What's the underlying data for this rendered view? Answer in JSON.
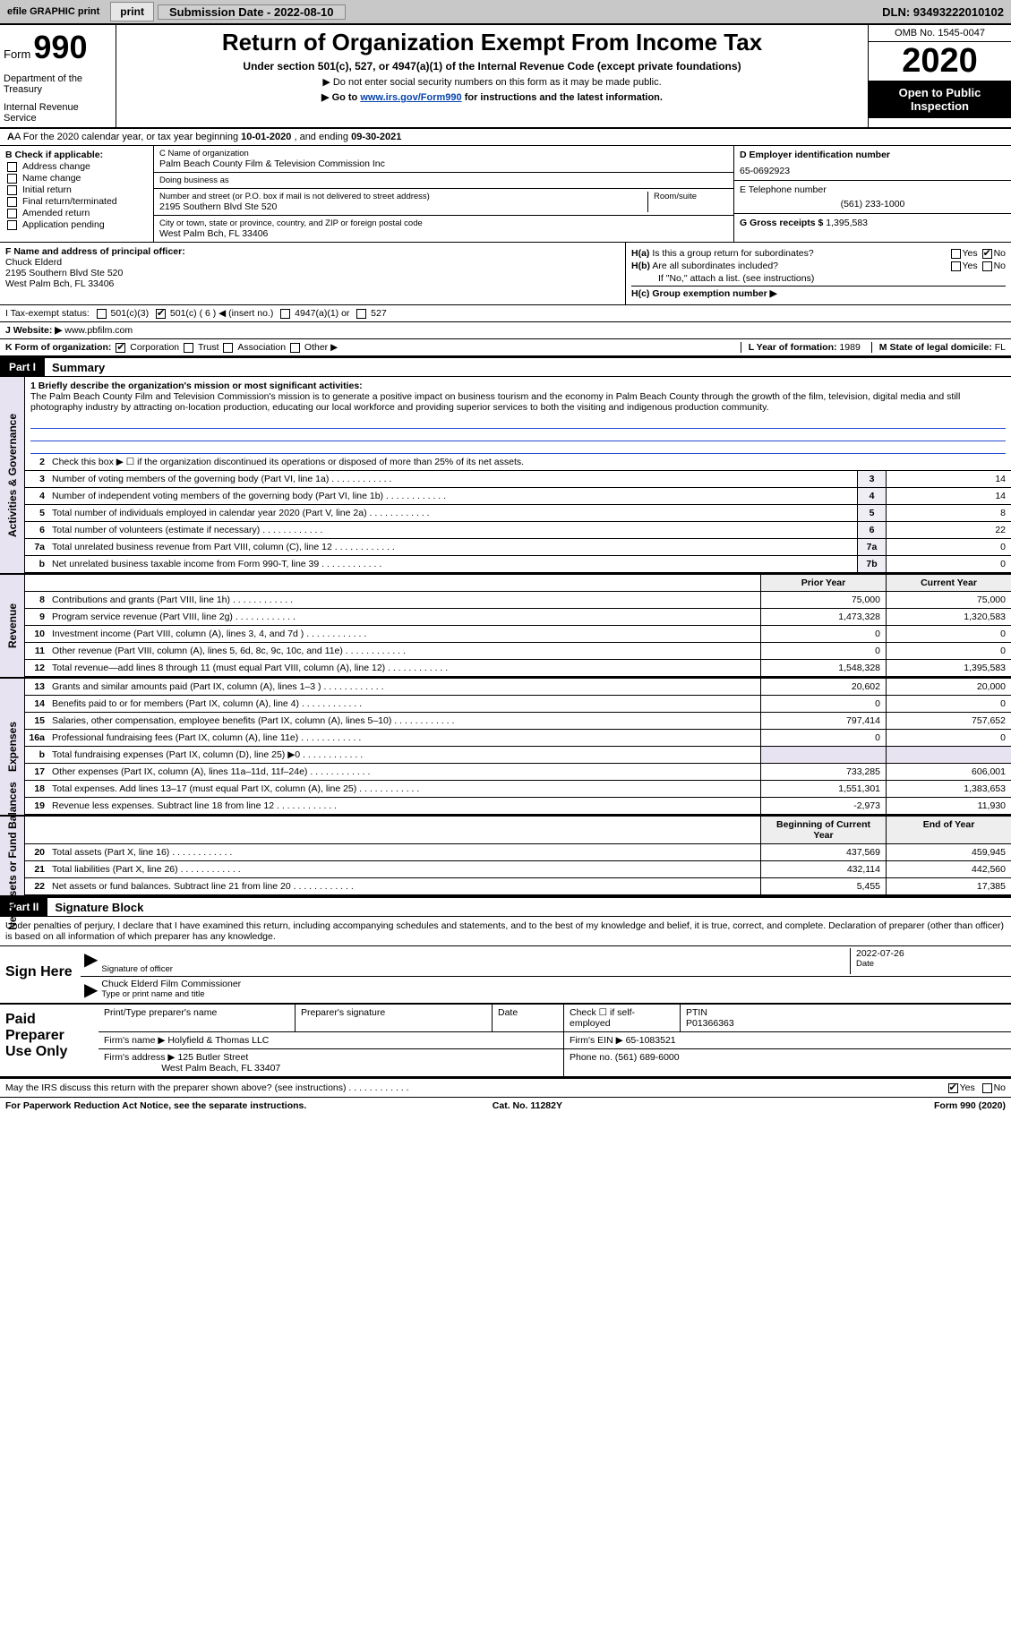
{
  "header": {
    "efile": "efile GRAPHIC print",
    "submission_label": "Submission Date - 2022-08-10",
    "dln": "DLN: 93493222010102"
  },
  "title": {
    "form_word": "Form",
    "form_num": "990",
    "dept1": "Department of the Treasury",
    "dept2": "Internal Revenue Service",
    "main": "Return of Organization Exempt From Income Tax",
    "sub1": "Under section 501(c), 527, or 4947(a)(1) of the Internal Revenue Code (except private foundations)",
    "sub2": "▶ Do not enter social security numbers on this form as it may be made public.",
    "sub3a": "▶ Go to ",
    "sub3_link": "www.irs.gov/Form990",
    "sub3b": " for instructions and the latest information.",
    "omb": "OMB No. 1545-0047",
    "year": "2020",
    "open": "Open to Public Inspection"
  },
  "lineA": {
    "prefix": "A For the 2020 calendar year, or tax year beginning ",
    "begin": "10-01-2020",
    "mid": " , and ending ",
    "end": "09-30-2021"
  },
  "B": {
    "hdr": "B Check if applicable:",
    "opts": [
      "Address change",
      "Name change",
      "Initial return",
      "Final return/terminated",
      "Amended return",
      "Application pending"
    ]
  },
  "C": {
    "name_lbl": "C Name of organization",
    "name": "Palm Beach County Film & Television Commission Inc",
    "dba_lbl": "Doing business as",
    "dba": "",
    "addr_lbl": "Number and street (or P.O. box if mail is not delivered to street address)",
    "room_lbl": "Room/suite",
    "addr": "2195 Southern Blvd Ste 520",
    "city_lbl": "City or town, state or province, country, and ZIP or foreign postal code",
    "city": "West Palm Bch, FL  33406"
  },
  "D": {
    "lbl": "D Employer identification number",
    "val": "65-0692923",
    "E_lbl": "E Telephone number",
    "E_val": "(561) 233-1000",
    "G_lbl": "G Gross receipts $ ",
    "G_val": "1,395,583"
  },
  "F": {
    "lbl": "F Name and address of principal officer:",
    "name": "Chuck Elderd",
    "l1": "2195 Southern Blvd Ste 520",
    "l2": "West Palm Bch, FL  33406"
  },
  "H": {
    "a_lbl": "H(a) Is this a group return for subordinates?",
    "b_lbl": "H(b) Are all subordinates included?",
    "note": "If \"No,\" attach a list. (see instructions)",
    "c_lbl": "H(c) Group exemption number ▶",
    "yes": "Yes",
    "no": "No"
  },
  "I": {
    "lbl": "I   Tax-exempt status:",
    "o1": "501(c)(3)",
    "o2": "501(c) ( 6 ) ◀ (insert no.)",
    "o3": "4947(a)(1) or",
    "o4": "527"
  },
  "J": {
    "lbl": "J   Website: ▶",
    "val": "www.pbfilm.com"
  },
  "K": {
    "lbl": "K Form of organization:",
    "o1": "Corporation",
    "o2": "Trust",
    "o3": "Association",
    "o4": "Other ▶"
  },
  "L": {
    "lbl": "L Year of formation: ",
    "val": "1989"
  },
  "M": {
    "lbl": "M State of legal domicile: ",
    "val": "FL"
  },
  "partI": {
    "hdr": "Part I",
    "title": "Summary"
  },
  "p1": {
    "l1_lbl": "1  Briefly describe the organization's mission or most significant activities:",
    "mission": "The Palm Beach County Film and Television Commission's mission is to generate a positive impact on business tourism and the economy in Palm Beach County through the growth of the film, television, digital media and still photography industry by attracting on-location production, educating our local workforce and providing superior services to both the visiting and indigenous production community.",
    "l2": "Check this box ▶ ☐ if the organization discontinued its operations or disposed of more than 25% of its net assets.",
    "lines": [
      {
        "n": "3",
        "t": "Number of voting members of the governing body (Part VI, line 1a)",
        "b": "3",
        "v": "14"
      },
      {
        "n": "4",
        "t": "Number of independent voting members of the governing body (Part VI, line 1b)",
        "b": "4",
        "v": "14"
      },
      {
        "n": "5",
        "t": "Total number of individuals employed in calendar year 2020 (Part V, line 2a)",
        "b": "5",
        "v": "8"
      },
      {
        "n": "6",
        "t": "Total number of volunteers (estimate if necessary)",
        "b": "6",
        "v": "22"
      },
      {
        "n": "7a",
        "t": "Total unrelated business revenue from Part VIII, column (C), line 12",
        "b": "7a",
        "v": "0"
      },
      {
        "n": "b",
        "t": "Net unrelated business taxable income from Form 990-T, line 39",
        "b": "7b",
        "v": "0"
      }
    ]
  },
  "revHdr": {
    "prior": "Prior Year",
    "curr": "Current Year"
  },
  "revenue": [
    {
      "n": "8",
      "t": "Contributions and grants (Part VIII, line 1h)",
      "p": "75,000",
      "c": "75,000"
    },
    {
      "n": "9",
      "t": "Program service revenue (Part VIII, line 2g)",
      "p": "1,473,328",
      "c": "1,320,583"
    },
    {
      "n": "10",
      "t": "Investment income (Part VIII, column (A), lines 3, 4, and 7d )",
      "p": "0",
      "c": "0"
    },
    {
      "n": "11",
      "t": "Other revenue (Part VIII, column (A), lines 5, 6d, 8c, 9c, 10c, and 11e)",
      "p": "0",
      "c": "0"
    },
    {
      "n": "12",
      "t": "Total revenue—add lines 8 through 11 (must equal Part VIII, column (A), line 12)",
      "p": "1,548,328",
      "c": "1,395,583"
    }
  ],
  "expenses": [
    {
      "n": "13",
      "t": "Grants and similar amounts paid (Part IX, column (A), lines 1–3 )",
      "p": "20,602",
      "c": "20,000"
    },
    {
      "n": "14",
      "t": "Benefits paid to or for members (Part IX, column (A), line 4)",
      "p": "0",
      "c": "0"
    },
    {
      "n": "15",
      "t": "Salaries, other compensation, employee benefits (Part IX, column (A), lines 5–10)",
      "p": "797,414",
      "c": "757,652"
    },
    {
      "n": "16a",
      "t": "Professional fundraising fees (Part IX, column (A), line 11e)",
      "p": "0",
      "c": "0"
    },
    {
      "n": "b",
      "t": "Total fundraising expenses (Part IX, column (D), line 25) ▶0",
      "p": "",
      "c": ""
    },
    {
      "n": "17",
      "t": "Other expenses (Part IX, column (A), lines 11a–11d, 11f–24e)",
      "p": "733,285",
      "c": "606,001"
    },
    {
      "n": "18",
      "t": "Total expenses. Add lines 13–17 (must equal Part IX, column (A), line 25)",
      "p": "1,551,301",
      "c": "1,383,653"
    },
    {
      "n": "19",
      "t": "Revenue less expenses. Subtract line 18 from line 12",
      "p": "-2,973",
      "c": "11,930"
    }
  ],
  "netHdr": {
    "b": "Beginning of Current Year",
    "e": "End of Year"
  },
  "net": [
    {
      "n": "20",
      "t": "Total assets (Part X, line 16)",
      "p": "437,569",
      "c": "459,945"
    },
    {
      "n": "21",
      "t": "Total liabilities (Part X, line 26)",
      "p": "432,114",
      "c": "442,560"
    },
    {
      "n": "22",
      "t": "Net assets or fund balances. Subtract line 21 from line 20",
      "p": "5,455",
      "c": "17,385"
    }
  ],
  "vlabels": {
    "ag": "Activities & Governance",
    "rev": "Revenue",
    "exp": "Expenses",
    "net": "Net Assets or Fund Balances"
  },
  "partII": {
    "hdr": "Part II",
    "title": "Signature Block",
    "decl": "Under penalties of perjury, I declare that I have examined this return, including accompanying schedules and statements, and to the best of my knowledge and belief, it is true, correct, and complete. Declaration of preparer (other than officer) is based on all information of which preparer has any knowledge."
  },
  "sign": {
    "here": "Sign Here",
    "sig_lbl": "Signature of officer",
    "date_lbl": "Date",
    "date": "2022-07-26",
    "name": "Chuck Elderd  Film Commissioner",
    "name_lbl": "Type or print name and title"
  },
  "paid": {
    "title": "Paid Preparer Use Only",
    "h1": "Print/Type preparer's name",
    "h2": "Preparer's signature",
    "h3": "Date",
    "h4": "Check ☐ if self-employed",
    "h5": "PTIN",
    "ptin": "P01366363",
    "firm_lbl": "Firm's name   ▶",
    "firm": "Holyfield & Thomas LLC",
    "ein_lbl": "Firm's EIN ▶ ",
    "ein": "65-1083521",
    "addr_lbl": "Firm's address ▶",
    "addr1": "125 Butler Street",
    "addr2": "West Palm Beach, FL  33407",
    "phone_lbl": "Phone no. ",
    "phone": "(561) 689-6000"
  },
  "discuss": {
    "q": "May the IRS discuss this return with the preparer shown above? (see instructions)",
    "yes": "Yes",
    "no": "No"
  },
  "paperwork": {
    "l": "For Paperwork Reduction Act Notice, see the separate instructions.",
    "m": "Cat. No. 11282Y",
    "r": "Form 990 (2020)"
  }
}
